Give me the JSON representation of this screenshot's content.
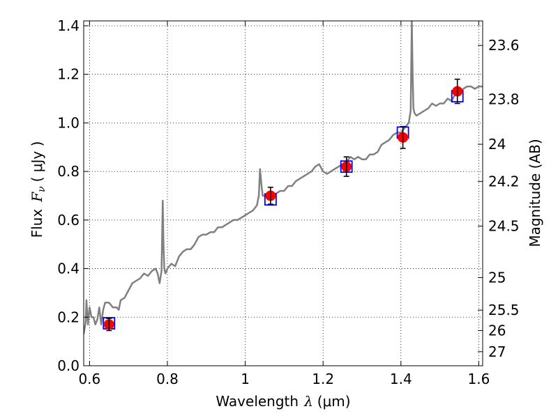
{
  "chart_data": {
    "type": "line",
    "xlabel_text": "Wavelength",
    "xlabel_symbol": "λ",
    "xlabel_unit": "(μm)",
    "ylabel_text": "Flux",
    "ylabel_symbol": "F",
    "ylabel_subscript": "ν",
    "ylabel_unit": "( μJy )",
    "y2label": "Magnitude (AB)",
    "xlim": [
      0.585,
      1.61
    ],
    "ylim": [
      0.0,
      1.42
    ],
    "grid": true,
    "xticks": [
      {
        "value": 0.6,
        "label": "0.6"
      },
      {
        "value": 0.8,
        "label": "0.8"
      },
      {
        "value": 1.0,
        "label": "1"
      },
      {
        "value": 1.2,
        "label": "1.2"
      },
      {
        "value": 1.4,
        "label": "1.4"
      },
      {
        "value": 1.6,
        "label": "1.6"
      }
    ],
    "yticks": [
      {
        "value": 0.0,
        "label": "0.0"
      },
      {
        "value": 0.2,
        "label": "0.2"
      },
      {
        "value": 0.4,
        "label": "0.4"
      },
      {
        "value": 0.6,
        "label": "0.6"
      },
      {
        "value": 0.8,
        "label": "0.8"
      },
      {
        "value": 1.0,
        "label": "1.0"
      },
      {
        "value": 1.2,
        "label": "1.2"
      },
      {
        "value": 1.4,
        "label": "1.4"
      }
    ],
    "y2ticks": [
      {
        "flux": 1.319,
        "label": "23.6"
      },
      {
        "flux": 1.097,
        "label": "23.8"
      },
      {
        "flux": 0.912,
        "label": "24"
      },
      {
        "flux": 0.759,
        "label": "24.2"
      },
      {
        "flux": 0.575,
        "label": "24.5"
      },
      {
        "flux": 0.363,
        "label": "25"
      },
      {
        "flux": 0.229,
        "label": "25.5"
      },
      {
        "flux": 0.145,
        "label": "26"
      },
      {
        "flux": 0.058,
        "label": "27"
      }
    ],
    "series": [
      {
        "kind": "model_spectrum",
        "color": "#808080",
        "x": [
          0.585,
          0.59,
          0.592,
          0.596,
          0.6,
          0.605,
          0.61,
          0.615,
          0.62,
          0.625,
          0.63,
          0.635,
          0.64,
          0.65,
          0.66,
          0.67,
          0.675,
          0.68,
          0.69,
          0.7,
          0.71,
          0.72,
          0.73,
          0.74,
          0.75,
          0.76,
          0.77,
          0.775,
          0.78,
          0.785,
          0.788,
          0.79,
          0.792,
          0.795,
          0.8,
          0.81,
          0.82,
          0.83,
          0.84,
          0.85,
          0.86,
          0.87,
          0.88,
          0.89,
          0.9,
          0.91,
          0.92,
          0.93,
          0.94,
          0.95,
          0.96,
          0.97,
          0.98,
          0.99,
          1.0,
          1.01,
          1.02,
          1.03,
          1.035,
          1.038,
          1.042,
          1.045,
          1.05,
          1.06,
          1.07,
          1.08,
          1.09,
          1.1,
          1.11,
          1.12,
          1.13,
          1.14,
          1.15,
          1.16,
          1.17,
          1.18,
          1.19,
          1.2,
          1.21,
          1.22,
          1.23,
          1.24,
          1.25,
          1.26,
          1.27,
          1.28,
          1.29,
          1.3,
          1.31,
          1.32,
          1.33,
          1.34,
          1.35,
          1.36,
          1.37,
          1.38,
          1.39,
          1.4,
          1.41,
          1.42,
          1.425,
          1.428,
          1.43,
          1.432,
          1.435,
          1.44,
          1.45,
          1.46,
          1.47,
          1.48,
          1.49,
          1.5,
          1.51,
          1.52,
          1.53,
          1.54,
          1.55,
          1.56,
          1.57,
          1.58,
          1.59,
          1.6,
          1.61
        ],
        "y": [
          0.13,
          0.18,
          0.27,
          0.17,
          0.24,
          0.2,
          0.2,
          0.17,
          0.19,
          0.24,
          0.17,
          0.23,
          0.26,
          0.26,
          0.24,
          0.24,
          0.23,
          0.27,
          0.28,
          0.31,
          0.34,
          0.35,
          0.36,
          0.38,
          0.37,
          0.39,
          0.4,
          0.38,
          0.34,
          0.39,
          0.68,
          0.5,
          0.4,
          0.38,
          0.4,
          0.42,
          0.41,
          0.45,
          0.47,
          0.48,
          0.48,
          0.5,
          0.53,
          0.54,
          0.54,
          0.55,
          0.55,
          0.57,
          0.57,
          0.58,
          0.59,
          0.6,
          0.6,
          0.61,
          0.62,
          0.63,
          0.64,
          0.66,
          0.7,
          0.81,
          0.74,
          0.7,
          0.7,
          0.7,
          0.7,
          0.71,
          0.72,
          0.72,
          0.74,
          0.74,
          0.76,
          0.77,
          0.78,
          0.79,
          0.8,
          0.82,
          0.83,
          0.8,
          0.79,
          0.8,
          0.81,
          0.82,
          0.83,
          0.84,
          0.86,
          0.85,
          0.86,
          0.85,
          0.85,
          0.87,
          0.87,
          0.88,
          0.91,
          0.92,
          0.93,
          0.95,
          0.96,
          0.96,
          0.98,
          1.0,
          1.05,
          1.42,
          1.2,
          1.06,
          1.04,
          1.03,
          1.04,
          1.05,
          1.06,
          1.08,
          1.07,
          1.08,
          1.08,
          1.1,
          1.09,
          1.12,
          1.13,
          1.14,
          1.15,
          1.15,
          1.14,
          1.15,
          1.15
        ]
      },
      {
        "kind": "model_photometry",
        "marker": "open_square",
        "color": "#0000ff",
        "x": [
          0.65,
          1.065,
          1.26,
          1.405,
          1.545
        ],
        "y": [
          0.175,
          0.685,
          0.82,
          0.96,
          1.11
        ]
      },
      {
        "kind": "observed_photometry",
        "marker": "filled_circle",
        "color": "#ff0000",
        "x": [
          0.65,
          1.065,
          1.26,
          1.405,
          1.545
        ],
        "y": [
          0.17,
          0.7,
          0.82,
          0.94,
          1.13
        ],
        "yerr": [
          0.025,
          0.035,
          0.04,
          0.045,
          0.05
        ]
      }
    ]
  }
}
